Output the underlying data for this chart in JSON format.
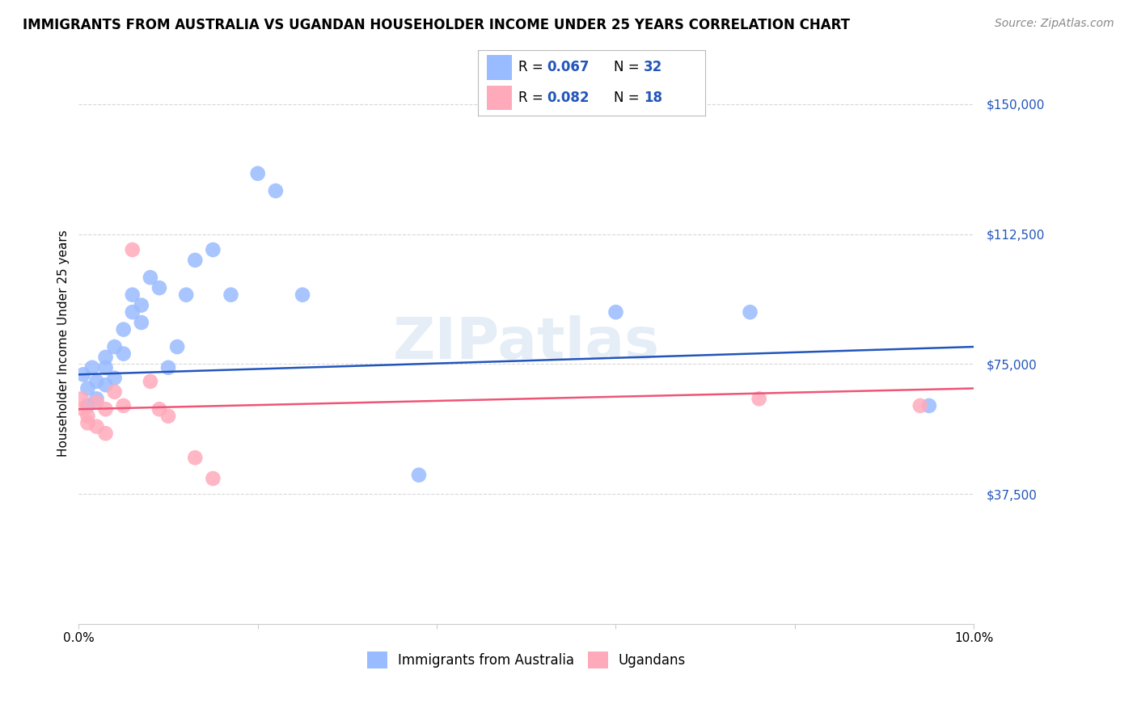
{
  "title": "IMMIGRANTS FROM AUSTRALIA VS UGANDAN HOUSEHOLDER INCOME UNDER 25 YEARS CORRELATION CHART",
  "source": "Source: ZipAtlas.com",
  "ylabel": "Householder Income Under 25 years",
  "xlim": [
    0,
    0.1
  ],
  "ylim": [
    0,
    162000
  ],
  "yticks": [
    37500,
    75000,
    112500,
    150000
  ],
  "ytick_labels": [
    "$37,500",
    "$75,000",
    "$112,500",
    "$150,000"
  ],
  "xticks": [
    0.0,
    0.02,
    0.04,
    0.06,
    0.08,
    0.1
  ],
  "xtick_labels": [
    "0.0%",
    "",
    "",
    "",
    "",
    "10.0%"
  ],
  "grid_color": "#d8d8d8",
  "watermark": "ZIPatlas",
  "blue_scatter_x": [
    0.0005,
    0.001,
    0.001,
    0.0015,
    0.002,
    0.002,
    0.003,
    0.003,
    0.003,
    0.004,
    0.004,
    0.005,
    0.005,
    0.006,
    0.006,
    0.007,
    0.007,
    0.008,
    0.009,
    0.01,
    0.011,
    0.012,
    0.013,
    0.015,
    0.017,
    0.02,
    0.022,
    0.025,
    0.038,
    0.06,
    0.075,
    0.095
  ],
  "blue_scatter_y": [
    72000,
    68000,
    63000,
    74000,
    70000,
    65000,
    69000,
    74000,
    77000,
    71000,
    80000,
    85000,
    78000,
    90000,
    95000,
    87000,
    92000,
    100000,
    97000,
    74000,
    80000,
    95000,
    105000,
    108000,
    95000,
    130000,
    125000,
    95000,
    43000,
    90000,
    90000,
    63000
  ],
  "pink_scatter_x": [
    0.0003,
    0.0005,
    0.001,
    0.001,
    0.002,
    0.002,
    0.003,
    0.003,
    0.004,
    0.005,
    0.006,
    0.008,
    0.009,
    0.01,
    0.013,
    0.015,
    0.076,
    0.094
  ],
  "pink_scatter_y": [
    65000,
    62000,
    60000,
    58000,
    64000,
    57000,
    62000,
    55000,
    67000,
    63000,
    108000,
    70000,
    62000,
    60000,
    48000,
    42000,
    65000,
    63000
  ],
  "blue_line_x0": 0.0,
  "blue_line_x1": 0.1,
  "blue_line_y0": 72000,
  "blue_line_y1": 80000,
  "pink_line_x0": 0.0,
  "pink_line_x1": 0.1,
  "pink_line_y0": 62000,
  "pink_line_y1": 68000,
  "blue_line_color": "#2255bb",
  "pink_line_color": "#ee5577",
  "blue_scatter_color": "#99bbff",
  "pink_scatter_color": "#ffaabb",
  "legend_R_blue": "0.067",
  "legend_N_blue": "32",
  "legend_R_pink": "0.082",
  "legend_N_pink": "18",
  "legend_label_blue": "Immigrants from Australia",
  "legend_label_pink": "Ugandans",
  "title_fontsize": 12,
  "source_fontsize": 10,
  "scatter_size": 180,
  "tick_color": "#2255bb"
}
